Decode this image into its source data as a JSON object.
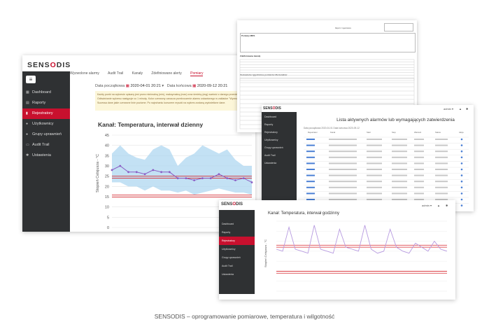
{
  "caption": "SENSODIS – oprogramowanie pomiarowe, temperatura i wilgotność",
  "brand": {
    "logo_a": "SENS",
    "logo_dot": "O",
    "logo_b": "DIS"
  },
  "screen_main": {
    "nav": [
      "Dashboard",
      "Raporty",
      "Rejestratory",
      "Użytkownicy",
      "Grupy uprawnień",
      "Audit Trail",
      "Ustawienia"
    ],
    "active_nav": 2,
    "top_tabs": [
      "Wyzwolone alarmy",
      "Audit Trail",
      "Kanały",
      "Zdefiniowane alerty",
      "Pomiary"
    ],
    "date_start_label": "Data początkowa",
    "date_start": "2020-04-01 20:21",
    "date_end_label": "Data końcowa",
    "date_end": "2020-09-12 20:21",
    "note": "Każdy punkt na wykresie opisany jest przez minimalną (min), maksymalną (max) oraz średnią (avg) wartość z danego przedziału. Odświeżanie wykresu następuje co 1 minutę. Kolor czerwony oznacza przekroczenie alarmu ustawionego w zakładce \"Wyzwolone alarmy\". Sucessa dane jakie czerwone linie poziome. Po najechaniu kursorem myszki na wykres zostaną wyświetlone dane.",
    "chart_title": "Kanał: Temperatura, interwał dzienny",
    "ylabel": "Stopień Celsjusza - °C"
  },
  "screen_alarms": {
    "title": "Lista aktywnych alarmów lub wymagających zatwierdzenia",
    "nav": [
      "Dashboard",
      "Raporty",
      "Rejestratory",
      "Użytkownicy",
      "Grupy uprawnień",
      "Audit Trail",
      "Ustawienia"
    ],
    "filter": "Data początkowa   2020-04-01   Data końcowa   2020-09-12",
    "columns": [
      "Rejestrator",
      "Kanał",
      "Start",
      "Stop",
      "Wartość",
      "Status",
      "Akcje"
    ],
    "user": "admin ▾"
  },
  "screen_hourly": {
    "nav": [
      "Dashboard",
      "Raporty",
      "Rejestratory",
      "Użytkownicy",
      "Grupy uprawnień",
      "Audit Trail",
      "Ustawienia"
    ],
    "chart_title": "Kanał: Temperatura, interwał godzinny",
    "ylabel": "Stopień Celsjusza - °C",
    "user": "admin ▾"
  },
  "document": {
    "header_lines": [
      "Raport z rejestratora",
      "Data wygenerowania raportu"
    ],
    "section1": "Pomiary MDS",
    "section2": "Zdefiniowane kanały",
    "section3": "Zestawienie tygodniowe pomiarów dla kanałów"
  },
  "chart_data": [
    {
      "type": "line",
      "title": "Kanał: Temperatura, interwał dzienny",
      "ylabel": "Stopień Celsjusza - °C",
      "ylim": [
        0,
        45
      ],
      "yticks": [
        0,
        5,
        10,
        15,
        20,
        25,
        30,
        35,
        40,
        45
      ],
      "series": [
        {
          "values": [
            28,
            30,
            27,
            27,
            26,
            28,
            27,
            27,
            24,
            24,
            23,
            24,
            24,
            26,
            24,
            23,
            24,
            22
          ]
        }
      ],
      "band_min": [
        22,
        22,
        20,
        20,
        18,
        20,
        18,
        18,
        17,
        18,
        16,
        17,
        18,
        19,
        18,
        17,
        17,
        16
      ],
      "band_max": [
        36,
        40,
        36,
        34,
        33,
        38,
        40,
        38,
        30,
        34,
        36,
        40,
        38,
        36,
        38,
        33,
        30,
        30
      ],
      "thresholds": [
        25,
        24,
        15.8,
        14.8
      ],
      "grid": true
    },
    {
      "type": "line",
      "title": "Kanał: Temperatura, interwał godzinny",
      "ylabel": "Stopień Celsjusza - °C",
      "ylim": [
        0,
        35
      ],
      "series": [
        {
          "values": [
            21,
            20,
            32,
            21,
            20,
            19,
            33,
            21,
            20,
            19,
            31,
            22,
            21,
            20,
            33,
            21,
            19,
            20,
            31,
            22,
            20,
            19,
            24,
            22,
            20,
            25,
            21,
            20
          ]
        }
      ],
      "thresholds": [
        23,
        22,
        10,
        9
      ],
      "grid": true
    }
  ]
}
